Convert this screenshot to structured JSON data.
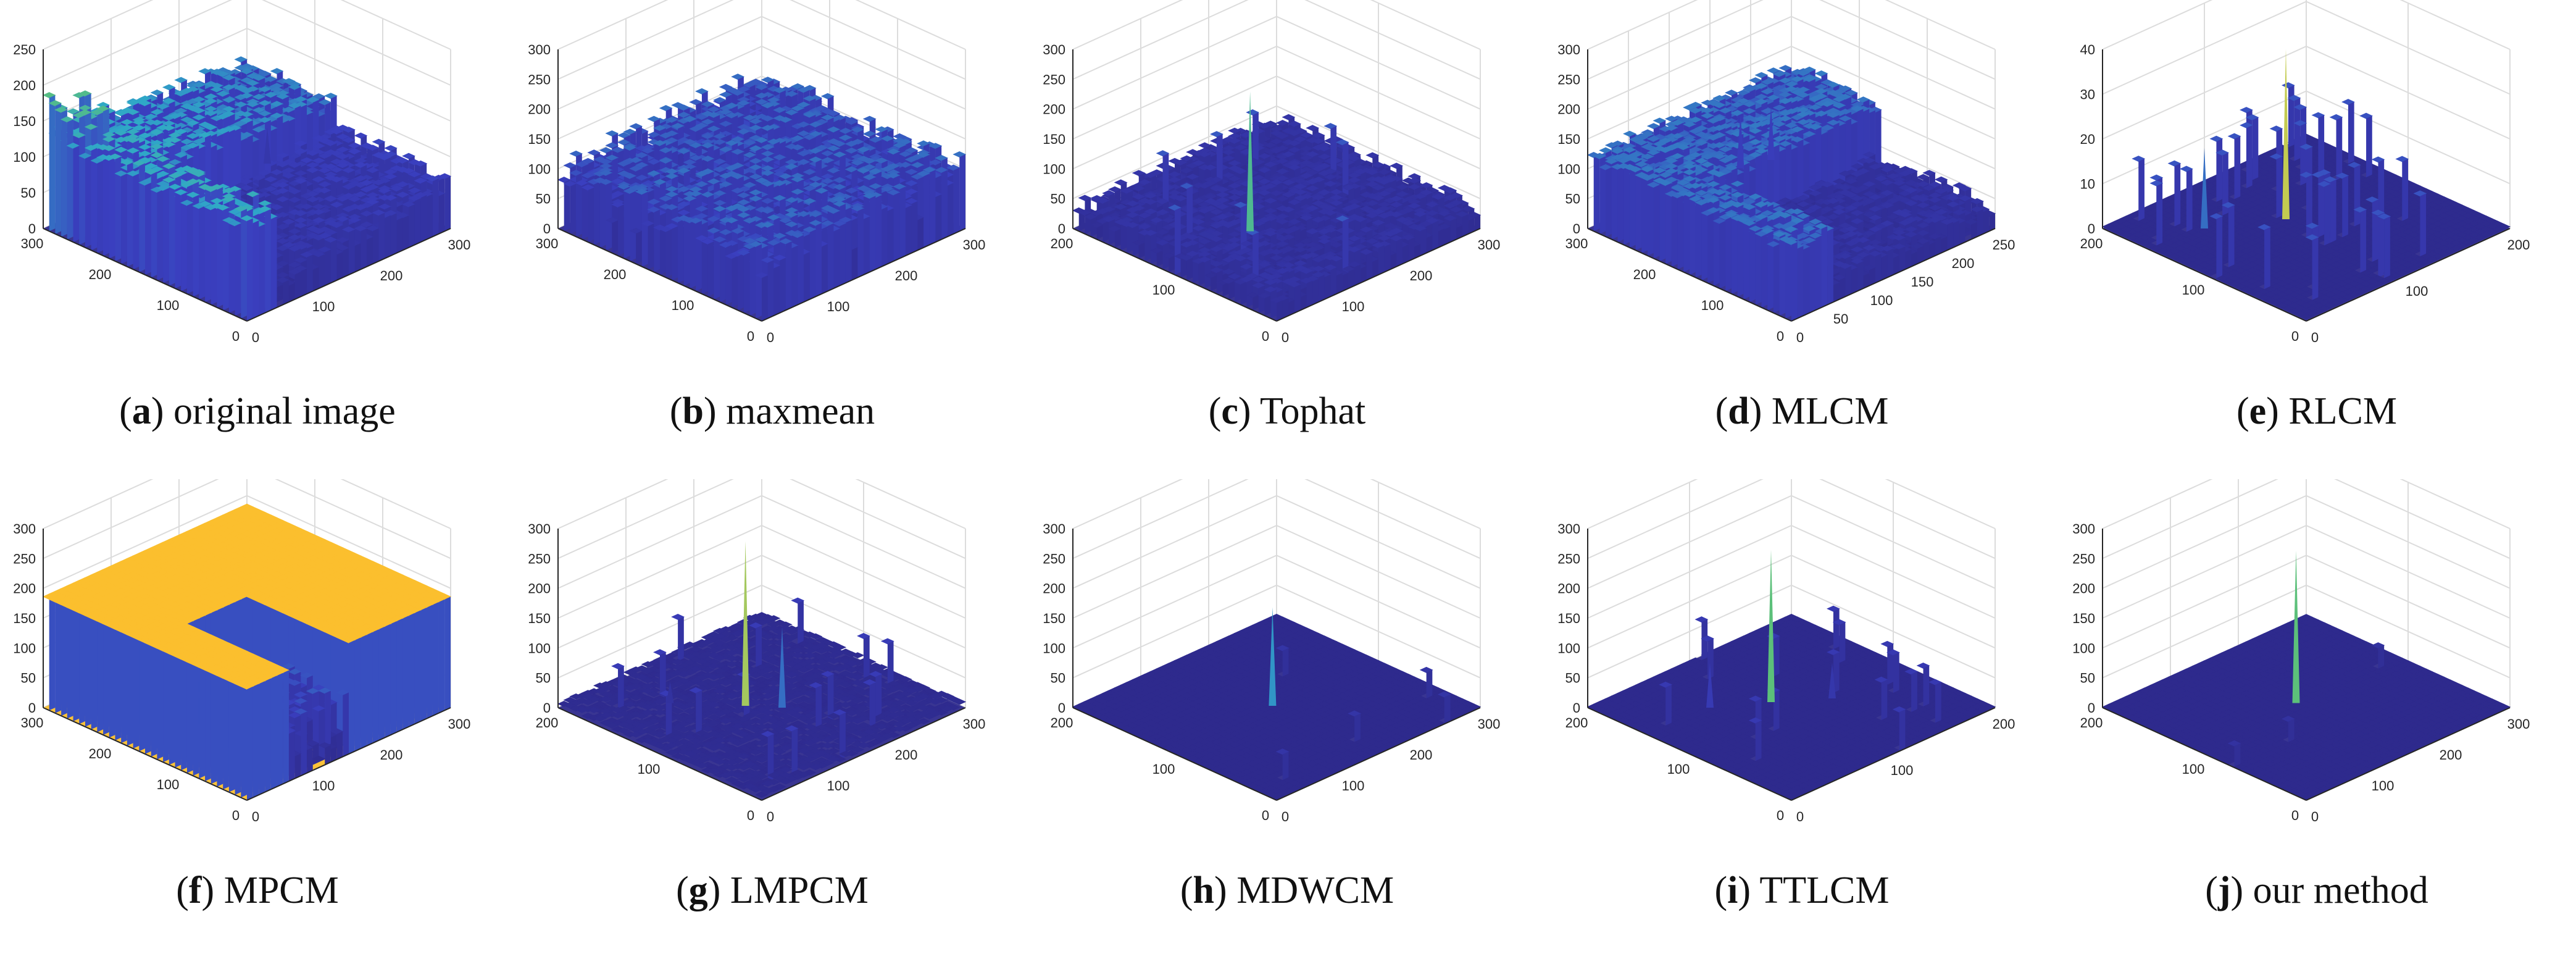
{
  "chart_data": [
    {
      "type": "surface3d",
      "letter": "a",
      "label": "original image",
      "zticks": [
        "0",
        "50",
        "100",
        "150",
        "200",
        "250"
      ],
      "yticks": [
        "0",
        "100",
        "200",
        "300"
      ],
      "xticks": [
        "0",
        "100",
        "200",
        "300"
      ],
      "profile": "original"
    },
    {
      "type": "surface3d",
      "letter": "b",
      "label": "maxmean",
      "zticks": [
        "0",
        "50",
        "100",
        "150",
        "200",
        "250",
        "300"
      ],
      "yticks": [
        "0",
        "100",
        "200",
        "300"
      ],
      "xticks": [
        "0",
        "100",
        "200",
        "300"
      ],
      "profile": "noisy_mid"
    },
    {
      "type": "surface3d",
      "letter": "c",
      "label": "Tophat",
      "zticks": [
        "0",
        "50",
        "100",
        "150",
        "200",
        "250",
        "300"
      ],
      "yticks": [
        "0",
        "100",
        "200"
      ],
      "xticks": [
        "0",
        "100",
        "200",
        "300"
      ],
      "profile": "noisy_low"
    },
    {
      "type": "surface3d",
      "letter": "d",
      "label": "MLCM",
      "zticks": [
        "0",
        "50",
        "100",
        "150",
        "200",
        "250",
        "300"
      ],
      "yticks": [
        "0",
        "100",
        "200",
        "300"
      ],
      "xticks": [
        "0",
        "50",
        "100",
        "150",
        "200",
        "250"
      ],
      "profile": "mlcm"
    },
    {
      "type": "surface3d",
      "letter": "e",
      "label": "RLCM",
      "zticks": [
        "0",
        "10",
        "20",
        "30",
        "40"
      ],
      "yticks": [
        "0",
        "100",
        "200"
      ],
      "xticks": [
        "0",
        "100",
        "200"
      ],
      "profile": "rlcm"
    },
    {
      "type": "surface3d",
      "letter": "f",
      "label": "MPCM",
      "zticks": [
        "0",
        "50",
        "100",
        "150",
        "200",
        "250",
        "300"
      ],
      "yticks": [
        "0",
        "100",
        "200",
        "300"
      ],
      "xticks": [
        "0",
        "100",
        "200",
        "300"
      ],
      "profile": "mpcm"
    },
    {
      "type": "surface3d",
      "letter": "g",
      "label": "LMPCM",
      "zticks": [
        "0",
        "50",
        "100",
        "150",
        "200",
        "250",
        "300"
      ],
      "yticks": [
        "0",
        "100",
        "200"
      ],
      "xticks": [
        "0",
        "100",
        "200",
        "300"
      ],
      "profile": "lmpcm"
    },
    {
      "type": "surface3d",
      "letter": "h",
      "label": "MDWCM",
      "zticks": [
        "0",
        "50",
        "100",
        "150",
        "200",
        "250",
        "300"
      ],
      "yticks": [
        "0",
        "100",
        "200"
      ],
      "xticks": [
        "0",
        "100",
        "200",
        "300"
      ],
      "profile": "mdwcm"
    },
    {
      "type": "surface3d",
      "letter": "i",
      "label": "TTLCM",
      "zticks": [
        "0",
        "50",
        "100",
        "150",
        "200",
        "250",
        "300"
      ],
      "yticks": [
        "0",
        "100",
        "200"
      ],
      "xticks": [
        "0",
        "100",
        "200"
      ],
      "profile": "ttlcm"
    },
    {
      "type": "surface3d",
      "letter": "j",
      "label": "our method",
      "zticks": [
        "0",
        "50",
        "100",
        "150",
        "200",
        "250",
        "300"
      ],
      "yticks": [
        "0",
        "100",
        "200"
      ],
      "xticks": [
        "0",
        "100",
        "200",
        "300"
      ],
      "profile": "ours"
    }
  ],
  "colors": {
    "axis": "#262626",
    "grid": "#dcdcdc",
    "floor": "#2e2a8c",
    "low": "#3a3fbf",
    "mid": "#2fa8c8",
    "high": "#5cc07a",
    "peak": "#f7d13d",
    "mpcm": "#fbbf2e"
  }
}
